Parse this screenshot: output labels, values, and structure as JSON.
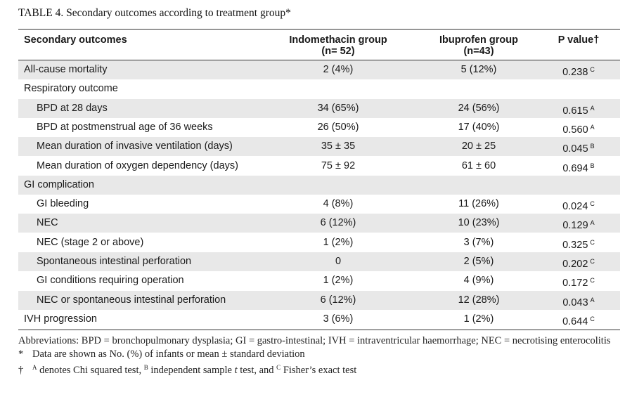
{
  "caption": "TABLE 4.  Secondary outcomes according to treatment group*",
  "header": {
    "col1": "Secondary outcomes",
    "col2_line1": "Indomethacin group",
    "col2_line2": "(n= 52)",
    "col3_line1": "Ibuprofen group",
    "col3_line2": "(n=43)",
    "col4": "P value†"
  },
  "rows": [
    {
      "label": "All-cause mortality",
      "indo": "2 (4%)",
      "ibu": "5 (12%)",
      "p": "0.238",
      "test": "C"
    },
    {
      "label": "Respiratory outcome",
      "indo": "",
      "ibu": "",
      "p": "",
      "test": ""
    },
    {
      "label": "BPD at 28 days",
      "indo": "34 (65%)",
      "ibu": "24 (56%)",
      "p": "0.615",
      "test": "A"
    },
    {
      "label": "BPD at postmenstrual age of 36 weeks",
      "indo": "26 (50%)",
      "ibu": "17 (40%)",
      "p": "0.560",
      "test": "A"
    },
    {
      "label": "Mean duration of invasive ventilation (days)",
      "indo": "35 ± 35",
      "ibu": "20 ± 25",
      "p": "0.045",
      "test": "B"
    },
    {
      "label": "Mean duration of oxygen dependency (days)",
      "indo": "75 ± 92",
      "ibu": "61 ± 60",
      "p": "0.694",
      "test": "B"
    },
    {
      "label": "GI complication",
      "indo": "",
      "ibu": "",
      "p": "",
      "test": ""
    },
    {
      "label": "GI bleeding",
      "indo": "4 (8%)",
      "ibu": "11 (26%)",
      "p": "0.024",
      "test": "C"
    },
    {
      "label": "NEC",
      "indo": "6 (12%)",
      "ibu": "10 (23%)",
      "p": "0.129",
      "test": "A"
    },
    {
      "label": "NEC (stage 2 or above)",
      "indo": "1 (2%)",
      "ibu": "3 (7%)",
      "p": "0.325",
      "test": "C"
    },
    {
      "label": "Spontaneous intestinal perforation",
      "indo": "0",
      "ibu": "2 (5%)",
      "p": "0.202",
      "test": "C"
    },
    {
      "label": "GI conditions requiring operation",
      "indo": "1 (2%)",
      "ibu": "4 (9%)",
      "p": "0.172",
      "test": "C"
    },
    {
      "label": "NEC or spontaneous intestinal perforation",
      "indo": "6 (12%)",
      "ibu": "12 (28%)",
      "p": "0.043",
      "test": "A"
    },
    {
      "label": "IVH progression",
      "indo": "3 (6%)",
      "ibu": "1 (2%)",
      "p": "0.644",
      "test": "C"
    }
  ],
  "footnotes": {
    "abbreviations": "Abbreviations: BPD = bronchopulmonary dysplasia; GI = gastro-intestinal; IVH = intraventricular haemorrhage; NEC = necrotising enterocolitis",
    "star_symbol": "*",
    "star_text": "Data are shown as No. (%) of infants or mean ± standard deviation",
    "dagger_symbol": "†",
    "dagger_a": "A",
    "dagger_text1": " denotes Chi squared test, ",
    "dagger_b": "B",
    "dagger_text2": " independent sample ",
    "dagger_t": "t",
    "dagger_text3": " test, and ",
    "dagger_c": "C",
    "dagger_text4": " Fisher’s exact test"
  }
}
